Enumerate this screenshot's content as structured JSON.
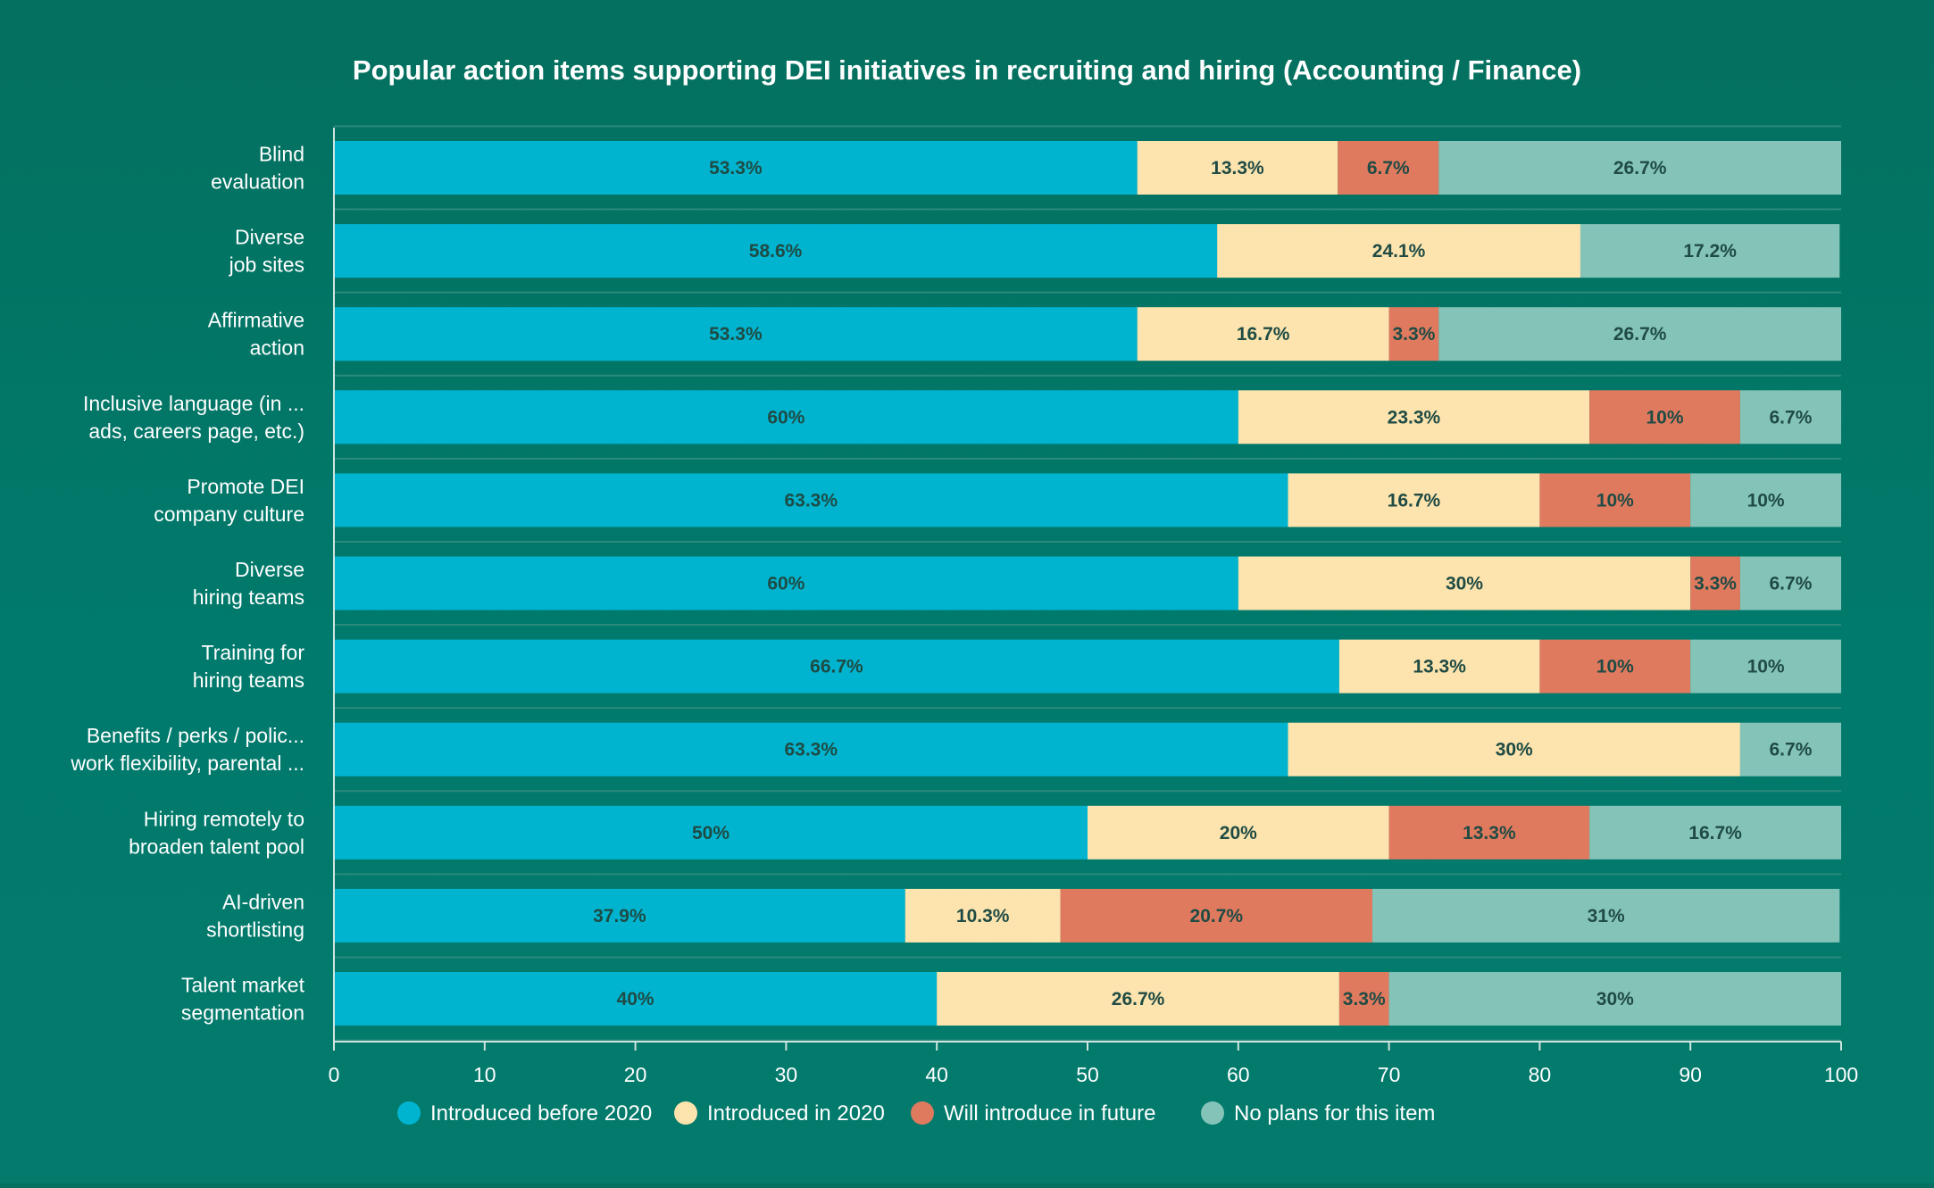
{
  "chart_data": {
    "type": "bar",
    "orientation": "horizontal",
    "stacked": true,
    "title": "Popular action items supporting DEI initiatives in recruiting and hiring (Accounting / Finance)",
    "categories": [
      [
        "Blind",
        "evaluation"
      ],
      [
        "Diverse",
        "job sites"
      ],
      [
        "Affirmative",
        "action"
      ],
      [
        "Inclusive language (in ...",
        "ads, careers page, etc.)"
      ],
      [
        "Promote DEI",
        "company culture"
      ],
      [
        "Diverse",
        "hiring teams"
      ],
      [
        "Training for",
        "hiring teams"
      ],
      [
        "Benefits / perks / polic...",
        "work flexibility, parental ..."
      ],
      [
        "Hiring remotely to",
        "broaden talent pool"
      ],
      [
        "AI-driven",
        "shortlisting"
      ],
      [
        "Talent market",
        "segmentation"
      ]
    ],
    "series": [
      {
        "name": "Introduced before 2020",
        "color": "#00b4cf",
        "values": [
          53.3,
          58.6,
          53.3,
          60,
          63.3,
          60,
          66.7,
          63.3,
          50,
          37.9,
          40
        ],
        "labels": [
          "53.3%",
          "58.6%",
          "53.3%",
          "60%",
          "63.3%",
          "60%",
          "66.7%",
          "63.3%",
          "50%",
          "37.9%",
          "40%"
        ]
      },
      {
        "name": "Introduced in 2020",
        "color": "#fde4ae",
        "values": [
          13.3,
          24.1,
          16.7,
          23.3,
          16.7,
          30,
          13.3,
          30,
          20,
          10.3,
          26.7
        ],
        "labels": [
          "13.3%",
          "24.1%",
          "16.7%",
          "23.3%",
          "16.7%",
          "30%",
          "13.3%",
          "30%",
          "20%",
          "10.3%",
          "26.7%"
        ]
      },
      {
        "name": "Will introduce in future",
        "color": "#e07a5f",
        "values": [
          6.7,
          0,
          3.3,
          10,
          10,
          3.3,
          10,
          0,
          13.3,
          20.7,
          3.3
        ],
        "labels": [
          "6.7%",
          "",
          "3.3%",
          "10%",
          "10%",
          "3.3%",
          "10%",
          "",
          "13.3%",
          "20.7%",
          "3.3%"
        ]
      },
      {
        "name": "No plans for this item",
        "color": "#84c4b8",
        "values": [
          26.7,
          17.2,
          26.7,
          6.7,
          10,
          6.7,
          10,
          6.7,
          16.7,
          31,
          30
        ],
        "labels": [
          "26.7%",
          "17.2%",
          "26.7%",
          "6.7%",
          "10%",
          "6.7%",
          "10%",
          "6.7%",
          "16.7%",
          "31%",
          "30%"
        ]
      }
    ],
    "xlim": [
      0,
      100
    ],
    "xticks": [
      "0",
      "10",
      "20",
      "30",
      "40",
      "50",
      "60",
      "70",
      "80",
      "90",
      "100"
    ],
    "xlabel": "",
    "ylabel": "",
    "grid": true,
    "legend": "bottom-center",
    "colors": {
      "background": "#04705f",
      "gridline": "#2b8a7c",
      "text": "#ffffff",
      "bar_label": "#1f4b44"
    }
  }
}
